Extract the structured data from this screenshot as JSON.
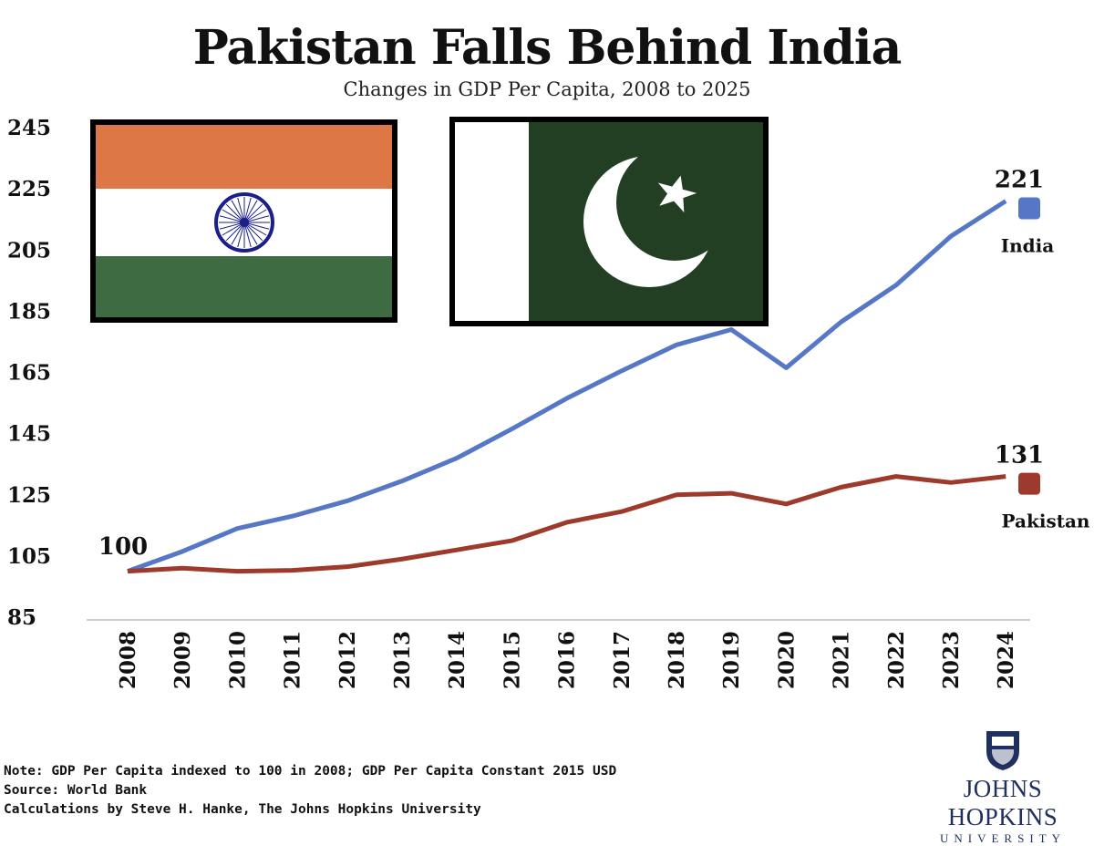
{
  "chart_data": {
    "type": "line",
    "title": "Pakistan Falls Behind India",
    "subtitle": "Changes in GDP Per Capita, 2008 to 2025",
    "xlabel": "",
    "ylabel": "",
    "x": [
      "2008",
      "2009",
      "2010",
      "2011",
      "2012",
      "2013",
      "2014",
      "2015",
      "2016",
      "2017",
      "2018",
      "2019",
      "2020",
      "2021",
      "2022",
      "2023",
      "2024"
    ],
    "yticks": [
      "85",
      "105",
      "125",
      "145",
      "165",
      "185",
      "205",
      "225",
      "245"
    ],
    "ylim": [
      85,
      245
    ],
    "grid": false,
    "series": [
      {
        "name": "India",
        "color": "#5676c6",
        "end_label": "221",
        "values": [
          100,
          106.5,
          114,
          118,
          123,
          129.5,
          137,
          146.5,
          156.5,
          165.5,
          174,
          179,
          166.5,
          181.5,
          193.5,
          209.5,
          221
        ]
      },
      {
        "name": "Pakistan",
        "color": "#9e3a2b",
        "end_label": "131",
        "values": [
          100,
          101,
          100,
          100.3,
          101.5,
          104,
          107,
          110,
          116,
          119.5,
          125,
          125.5,
          122,
          127.5,
          131,
          129,
          131
        ]
      }
    ],
    "start_label": "100",
    "legend_placement": "right (end of lines)"
  },
  "footer": {
    "note": "Note: GDP Per Capita indexed to 100 in 2008; GDP Per Capita Constant 2015 USD",
    "source": "Source: World Bank",
    "credit": "Calculations by Steve H. Hanke, The Johns Hopkins University"
  },
  "logo": {
    "line1": "JOHNS HOPKINS",
    "line2": "UNIVERSITY"
  },
  "flags": {
    "left": "india-flag",
    "right": "pakistan-flag"
  }
}
